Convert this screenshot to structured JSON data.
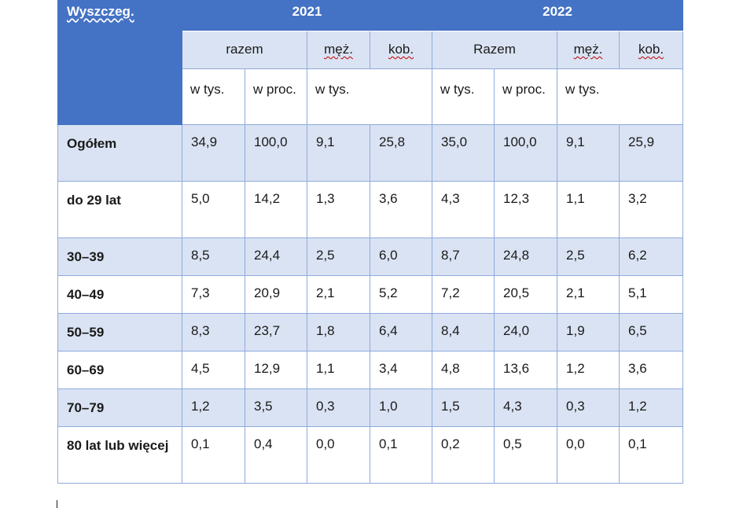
{
  "header": {
    "corner": "Wyszczeg.",
    "years": [
      "2021",
      "2022"
    ],
    "sub": {
      "y2021": {
        "total": "razem",
        "men": "męż.",
        "women": "kob."
      },
      "y2022": {
        "total": "Razem",
        "men": "męż.",
        "women": "kob."
      }
    },
    "units": {
      "thousands": "w tys.",
      "percent": "w proc."
    }
  },
  "rows": [
    {
      "label": "Ogółem",
      "values": [
        "34,9",
        "100,0",
        "9,1",
        "25,8",
        "35,0",
        "100,0",
        "9,1",
        "25,9"
      ]
    },
    {
      "label": "do 29 lat",
      "values": [
        "5,0",
        "14,2",
        "1,3",
        "3,6",
        "4,3",
        "12,3",
        "1,1",
        "3,2"
      ]
    },
    {
      "label": "30–39",
      "values": [
        "8,5",
        "24,4",
        "2,5",
        "6,0",
        "8,7",
        "24,8",
        "2,5",
        "6,2"
      ]
    },
    {
      "label": "40–49",
      "values": [
        "7,3",
        "20,9",
        "2,1",
        "5,2",
        "7,2",
        "20,5",
        "2,1",
        "5,1"
      ]
    },
    {
      "label": "50–59",
      "values": [
        "8,3",
        "23,7",
        "1,8",
        "6,4",
        "8,4",
        "24,0",
        "1,9",
        "6,5"
      ]
    },
    {
      "label": "60–69",
      "values": [
        "4,5",
        "12,9",
        "1,1",
        "3,4",
        "4,8",
        "13,6",
        "1,2",
        "3,6"
      ]
    },
    {
      "label": "70–79",
      "values": [
        "1,2",
        "3,5",
        "0,3",
        "1,0",
        "1,5",
        "4,3",
        "0,3",
        "1,2"
      ]
    },
    {
      "label": "80 lat lub więcej",
      "values": [
        "0,1",
        "0,4",
        "0,0",
        "0,1",
        "0,2",
        "0,5",
        "0,0",
        "0,1"
      ]
    }
  ]
}
